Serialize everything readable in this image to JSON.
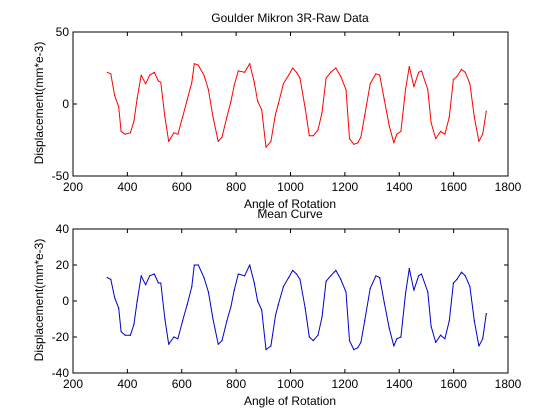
{
  "chart_data": [
    {
      "type": "line",
      "title": "Goulder Mikron 3R-Raw Data",
      "xlabel": "Angle of Rotation",
      "ylabel": "Displacement(mm*e-3)",
      "xlim": [
        200,
        1800
      ],
      "ylim": [
        -50,
        50
      ],
      "xticks": [
        "200",
        "400",
        "600",
        "800",
        "1000",
        "1200",
        "1400",
        "1600",
        "1800"
      ],
      "yticks": [
        "-50",
        "0",
        "50"
      ],
      "grid": false,
      "legend": "none",
      "series": [
        {
          "color": "#ff0000",
          "x": [
            326,
            339,
            353,
            368,
            377,
            392,
            411,
            424,
            436,
            451,
            467,
            482,
            499,
            514,
            523,
            538,
            552,
            571,
            586,
            603,
            620,
            637,
            646,
            661,
            682,
            698,
            715,
            734,
            748,
            766,
            781,
            793,
            808,
            831,
            850,
            867,
            879,
            894,
            910,
            928,
            945,
            955,
            974,
            993,
            1008,
            1022,
            1035,
            1054,
            1069,
            1084,
            1101,
            1116,
            1131,
            1148,
            1167,
            1185,
            1204,
            1217,
            1233,
            1247,
            1259,
            1273,
            1293,
            1314,
            1328,
            1345,
            1363,
            1380,
            1391,
            1406,
            1423,
            1437,
            1454,
            1471,
            1482,
            1505,
            1517,
            1534,
            1552,
            1568,
            1584,
            1599,
            1612,
            1629,
            1643,
            1660,
            1676,
            1693,
            1707,
            1720
          ],
          "y": [
            22,
            21,
            6,
            -2,
            -19,
            -21,
            -20,
            -12,
            4,
            20,
            14,
            20,
            22,
            16,
            15,
            -9,
            -26,
            -20,
            -21,
            -9,
            3,
            15,
            28,
            27,
            20,
            10,
            -9,
            -26,
            -23,
            -9,
            2,
            13,
            23,
            22,
            28,
            15,
            2,
            -4,
            -30,
            -26,
            -7,
            0,
            14,
            20,
            25,
            22,
            18,
            -3,
            -22,
            -22,
            -18,
            -6,
            18,
            22,
            25,
            19,
            10,
            -24,
            -28,
            -27,
            -23,
            -8,
            14,
            21,
            20,
            3,
            -15,
            -27,
            -21,
            -19,
            10,
            26,
            12,
            22,
            23,
            10,
            -13,
            -24,
            -19,
            -21,
            -9,
            17,
            19,
            24,
            22,
            14,
            -9,
            -26,
            -21,
            -5
          ]
        }
      ]
    },
    {
      "type": "line",
      "title": "Mean Curve",
      "xlabel": "Angle of Rotation",
      "ylabel": "Displacement(mm*e-3)",
      "xlim": [
        200,
        1800
      ],
      "ylim": [
        -40,
        40
      ],
      "xticks": [
        "200",
        "400",
        "600",
        "800",
        "1000",
        "1200",
        "1400",
        "1600",
        "1800"
      ],
      "yticks": [
        "-40",
        "-20",
        "0",
        "20",
        "40"
      ],
      "grid": false,
      "legend": "none",
      "series": [
        {
          "color": "#0000cc",
          "x": [
            326,
            339,
            353,
            368,
            377,
            392,
            411,
            424,
            436,
            451,
            467,
            482,
            499,
            514,
            523,
            538,
            552,
            571,
            586,
            603,
            620,
            637,
            646,
            661,
            682,
            698,
            715,
            734,
            748,
            766,
            781,
            793,
            808,
            831,
            850,
            867,
            879,
            894,
            910,
            928,
            945,
            955,
            974,
            993,
            1008,
            1022,
            1035,
            1054,
            1069,
            1084,
            1101,
            1116,
            1131,
            1148,
            1167,
            1185,
            1204,
            1217,
            1233,
            1247,
            1259,
            1273,
            1293,
            1314,
            1328,
            1345,
            1363,
            1380,
            1391,
            1406,
            1423,
            1437,
            1454,
            1471,
            1482,
            1505,
            1517,
            1534,
            1552,
            1568,
            1584,
            1599,
            1612,
            1629,
            1643,
            1660,
            1676,
            1693,
            1707,
            1720
          ],
          "y": [
            13,
            12,
            2,
            -4,
            -17,
            -19,
            -19,
            -13,
            0,
            14,
            9,
            14,
            15,
            10,
            10,
            -10,
            -24,
            -20,
            -21,
            -11,
            -2,
            8,
            20,
            20,
            13,
            5,
            -10,
            -24,
            -22,
            -11,
            -3,
            6,
            15,
            14,
            20,
            10,
            0,
            -5,
            -27,
            -25,
            -8,
            -2,
            8,
            13,
            17,
            15,
            12,
            -4,
            -20,
            -22,
            -19,
            -9,
            11,
            14,
            17,
            12,
            5,
            -22,
            -27,
            -26,
            -23,
            -11,
            7,
            14,
            13,
            -1,
            -15,
            -25,
            -21,
            -20,
            4,
            18,
            6,
            14,
            15,
            5,
            -14,
            -23,
            -19,
            -21,
            -11,
            10,
            12,
            16,
            14,
            8,
            -11,
            -25,
            -21,
            -7
          ]
        }
      ]
    }
  ]
}
